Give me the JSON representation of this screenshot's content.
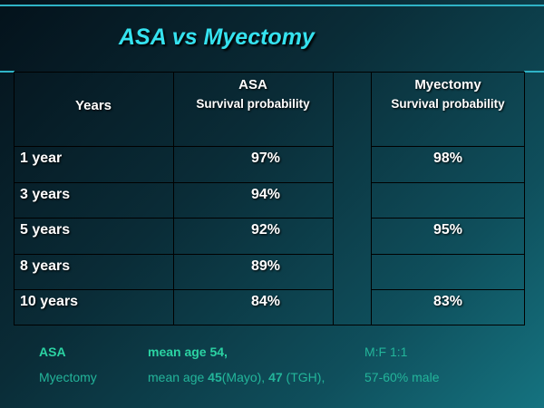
{
  "title": "ASA vs Myectomy",
  "table": {
    "col_years_header": "Years",
    "col_asa_header": "ASA",
    "col_asa_sub": "Survival probability",
    "col_myectomy_header": "Myectomy",
    "col_myectomy_sub": "Survival probability",
    "rows": [
      {
        "years": "1 year",
        "asa": "97%",
        "myectomy": "98%"
      },
      {
        "years": "3 years",
        "asa": "94%",
        "myectomy": ""
      },
      {
        "years": "5 years",
        "asa": "92%",
        "myectomy": "95%"
      },
      {
        "years": "8 years",
        "asa": "89%",
        "myectomy": ""
      },
      {
        "years": "10 years",
        "asa": "84%",
        "myectomy": "83%"
      }
    ]
  },
  "footer": {
    "asa_label": "ASA",
    "asa_age_text": "mean age 54,",
    "asa_sex_ratio": "M:F 1:1",
    "myectomy_label": "Myectomy",
    "myectomy_age_prefix": "mean age ",
    "myectomy_age_mayo_value": "45",
    "myectomy_age_mayo_source": "(Mayo), ",
    "myectomy_age_tgh_value": "47",
    "myectomy_age_tgh_source": " (TGH),",
    "myectomy_sex_ratio": "57-60% male"
  }
}
